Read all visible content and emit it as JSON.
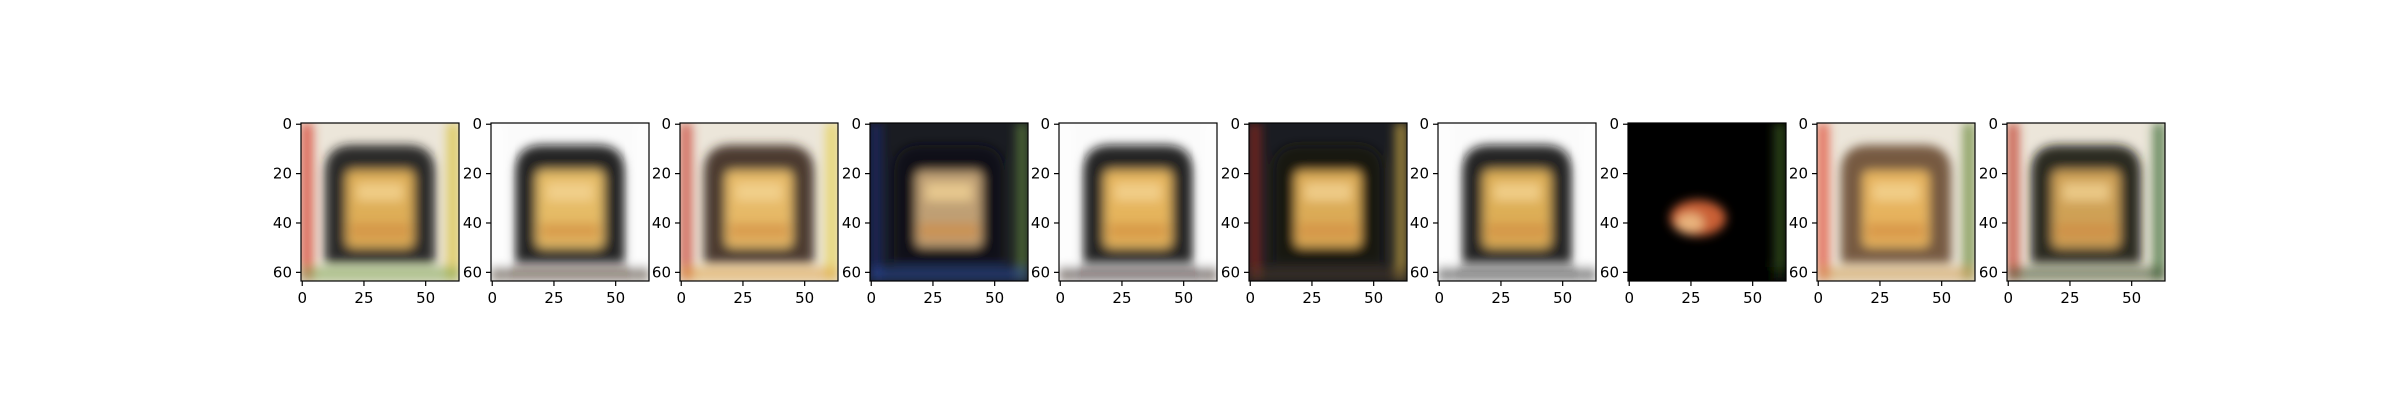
{
  "figure": {
    "panel_count": 10,
    "image_resolution": [
      64,
      64
    ],
    "x_tick_values": [
      0,
      25,
      50
    ],
    "y_tick_values": [
      0,
      20,
      40,
      60
    ]
  },
  "panels": [
    {
      "id": 1,
      "background": "light",
      "frame_color": "#1b1b1b",
      "inner_color": "#e8b55a",
      "edge_color": "#7aa34a",
      "border_colors": [
        "#d63a2a",
        "#d9c23e"
      ]
    },
    {
      "id": 2,
      "background": "white",
      "frame_color": "#101010",
      "inner_color": "#f0c46a",
      "edge_color": "#3a2a1a",
      "border_colors": [
        "#ffffff",
        "#ffffff"
      ]
    },
    {
      "id": 3,
      "background": "light",
      "frame_color": "#3a2a20",
      "inner_color": "#efc06a",
      "edge_color": "#e0a040",
      "border_colors": [
        "#c84030",
        "#e6d050"
      ]
    },
    {
      "id": 4,
      "background": "dark",
      "frame_color": "#0a0a14",
      "inner_color": "#c9a87a",
      "edge_color": "#2a4aa0",
      "border_colors": [
        "#1b2a6a",
        "#5a7a3a"
      ]
    },
    {
      "id": 5,
      "background": "white",
      "frame_color": "#121212",
      "inner_color": "#f0bd60",
      "edge_color": "#2a1a10",
      "border_colors": [
        "#ffffff",
        "#ffffff"
      ]
    },
    {
      "id": 6,
      "background": "dark",
      "frame_color": "#1a1410",
      "inner_color": "#e6b45c",
      "edge_color": "#4a3a2a",
      "border_colors": [
        "#8a2a20",
        "#c0a040"
      ]
    },
    {
      "id": 7,
      "background": "white",
      "frame_color": "#0e0e0e",
      "inner_color": "#e8b65a",
      "edge_color": "#2a2a2a",
      "border_colors": [
        "#ffffff",
        "#ffffff"
      ]
    },
    {
      "id": 8,
      "background": "black",
      "frame_color": "#000000",
      "inner_color": "#e06a3a",
      "edge_color": "#000000",
      "border_colors": [
        "#000000",
        "#3a5a20"
      ]
    },
    {
      "id": 9,
      "background": "light",
      "frame_color": "#6a4a30",
      "inner_color": "#ecb860",
      "edge_color": "#d09a50",
      "border_colors": [
        "#e04a30",
        "#6a8a3a"
      ]
    },
    {
      "id": 10,
      "background": "light",
      "frame_color": "#1a1612",
      "inner_color": "#d8a85a",
      "edge_color": "#3a4a2a",
      "border_colors": [
        "#c03a2a",
        "#3a6a30"
      ]
    }
  ]
}
